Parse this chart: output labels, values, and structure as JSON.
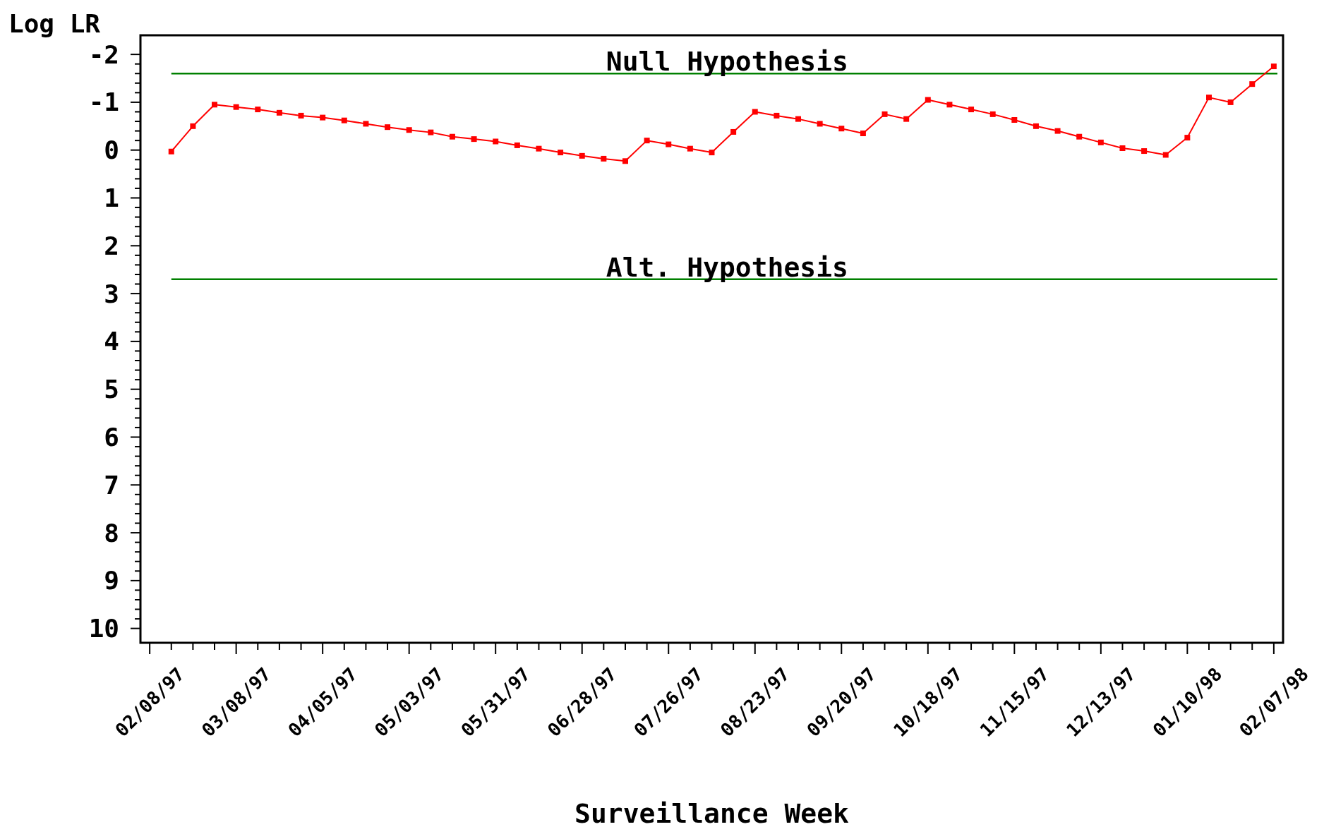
{
  "chart_data": {
    "type": "line",
    "ylabel": "Log LR",
    "xlabel": "Surveillance Week",
    "x": [
      "1997-02-15",
      "1997-02-22",
      "1997-03-01",
      "1997-03-08",
      "1997-03-15",
      "1997-03-22",
      "1997-03-29",
      "1997-04-05",
      "1997-04-12",
      "1997-04-19",
      "1997-04-26",
      "1997-05-03",
      "1997-05-10",
      "1997-05-17",
      "1997-05-24",
      "1997-05-31",
      "1997-06-07",
      "1997-06-14",
      "1997-06-21",
      "1997-06-28",
      "1997-07-05",
      "1997-07-12",
      "1997-07-19",
      "1997-07-26",
      "1997-08-02",
      "1997-08-09",
      "1997-08-16",
      "1997-08-23",
      "1997-08-30",
      "1997-09-06",
      "1997-09-13",
      "1997-09-20",
      "1997-09-27",
      "1997-10-04",
      "1997-10-11",
      "1997-10-18",
      "1997-10-25",
      "1997-11-01",
      "1997-11-08",
      "1997-11-15",
      "1997-11-22",
      "1997-11-29",
      "1997-12-06",
      "1997-12-13",
      "1997-12-20",
      "1997-12-27",
      "1998-01-03",
      "1998-01-10",
      "1998-01-17",
      "1998-01-24",
      "1998-01-31",
      "1998-02-07"
    ],
    "series": [
      {
        "color": "#ff0000",
        "values": [
          0.03,
          -0.5,
          -0.95,
          -0.9,
          -0.85,
          -0.78,
          -0.72,
          -0.68,
          -0.62,
          -0.55,
          -0.48,
          -0.42,
          -0.37,
          -0.28,
          -0.23,
          -0.18,
          -0.1,
          -0.03,
          0.05,
          0.12,
          0.18,
          0.23,
          -0.2,
          -0.12,
          -0.03,
          0.05,
          -0.38,
          -0.8,
          -0.72,
          -0.65,
          -0.55,
          -0.45,
          -0.35,
          -0.75,
          -0.65,
          -1.05,
          -0.95,
          -0.85,
          -0.75,
          -0.63,
          -0.5,
          -0.4,
          -0.28,
          -0.16,
          -0.04,
          0.02,
          0.1,
          -0.26,
          -1.1,
          -1.0,
          -1.38,
          -1.75
        ]
      }
    ],
    "marker": "square",
    "line_style": "solid",
    "grid": false,
    "ylim": [
      10.3,
      -2.4
    ],
    "yticks": [
      {
        "value": -2,
        "label": "-2"
      },
      {
        "value": -1.8,
        "label": null
      },
      {
        "value": -1.6,
        "label": null
      },
      {
        "value": -1.4,
        "label": null
      },
      {
        "value": -1.2,
        "label": null
      },
      {
        "value": -1,
        "label": "-1"
      },
      {
        "value": -0.8,
        "label": null
      },
      {
        "value": -0.6,
        "label": null
      },
      {
        "value": -0.4,
        "label": null
      },
      {
        "value": -0.2,
        "label": null
      },
      0,
      {
        "value": 0.2,
        "label": null
      },
      {
        "value": 0.4,
        "label": null
      },
      {
        "value": 0.6,
        "label": null
      },
      {
        "value": 0.8,
        "label": null
      },
      1,
      {
        "value": 1.2,
        "label": null
      },
      {
        "value": 1.4,
        "label": null
      },
      {
        "value": 1.6,
        "label": null
      },
      {
        "value": 1.8,
        "label": null
      },
      2,
      {
        "value": 2.2,
        "label": null
      },
      {
        "value": 2.4,
        "label": null
      },
      {
        "value": 2.6,
        "label": null
      },
      {
        "value": 2.8,
        "label": null
      },
      3,
      {
        "value": 3.2,
        "label": null
      },
      {
        "value": 3.4,
        "label": null
      },
      {
        "value": 3.6,
        "label": null
      },
      {
        "value": 3.8,
        "label": null
      },
      4,
      {
        "value": 4.2,
        "label": null
      },
      {
        "value": 4.4,
        "label": null
      },
      {
        "value": 4.6,
        "label": null
      },
      {
        "value": 4.8,
        "label": null
      },
      5,
      {
        "value": 5.2,
        "label": null
      },
      {
        "value": 5.4,
        "label": null
      },
      {
        "value": 5.6,
        "label": null
      },
      {
        "value": 5.8,
        "label": null
      },
      6,
      {
        "value": 6.2,
        "label": null
      },
      {
        "value": 6.4,
        "label": null
      },
      {
        "value": 6.6,
        "label": null
      },
      {
        "value": 6.8,
        "label": null
      },
      7,
      {
        "value": 7.2,
        "label": null
      },
      {
        "value": 7.4,
        "label": null
      },
      {
        "value": 7.6,
        "label": null
      },
      {
        "value": 7.8,
        "label": null
      },
      8,
      {
        "value": 8.2,
        "label": null
      },
      {
        "value": 8.4,
        "label": null
      },
      {
        "value": 8.6,
        "label": null
      },
      {
        "value": 8.8,
        "label": null
      },
      9,
      {
        "value": 9.2,
        "label": null
      },
      {
        "value": 9.4,
        "label": null
      },
      {
        "value": 9.6,
        "label": null
      },
      {
        "value": 9.8,
        "label": null
      },
      10
    ],
    "xlim": [
      "1997-02-05",
      "1998-02-10"
    ],
    "xticks": [
      {
        "value": "1997-02-08",
        "label": "02/08/97"
      },
      {
        "value": "1997-02-15",
        "label": null
      },
      {
        "value": "1997-02-22",
        "label": null
      },
      {
        "value": "1997-03-01",
        "label": null
      },
      {
        "value": "1997-03-08",
        "label": "03/08/97"
      },
      {
        "value": "1997-03-15",
        "label": null
      },
      {
        "value": "1997-03-22",
        "label": null
      },
      {
        "value": "1997-03-29",
        "label": null
      },
      {
        "value": "1997-04-05",
        "label": "04/05/97"
      },
      {
        "value": "1997-04-12",
        "label": null
      },
      {
        "value": "1997-04-19",
        "label": null
      },
      {
        "value": "1997-04-26",
        "label": null
      },
      {
        "value": "1997-05-03",
        "label": "05/03/97"
      },
      {
        "value": "1997-05-10",
        "label": null
      },
      {
        "value": "1997-05-17",
        "label": null
      },
      {
        "value": "1997-05-24",
        "label": null
      },
      {
        "value": "1997-05-31",
        "label": "05/31/97"
      },
      {
        "value": "1997-06-07",
        "label": null
      },
      {
        "value": "1997-06-14",
        "label": null
      },
      {
        "value": "1997-06-21",
        "label": null
      },
      {
        "value": "1997-06-28",
        "label": "06/28/97"
      },
      {
        "value": "1997-07-05",
        "label": null
      },
      {
        "value": "1997-07-12",
        "label": null
      },
      {
        "value": "1997-07-19",
        "label": null
      },
      {
        "value": "1997-07-26",
        "label": "07/26/97"
      },
      {
        "value": "1997-08-02",
        "label": null
      },
      {
        "value": "1997-08-09",
        "label": null
      },
      {
        "value": "1997-08-16",
        "label": null
      },
      {
        "value": "1997-08-23",
        "label": "08/23/97"
      },
      {
        "value": "1997-08-30",
        "label": null
      },
      {
        "value": "1997-09-06",
        "label": null
      },
      {
        "value": "1997-09-13",
        "label": null
      },
      {
        "value": "1997-09-20",
        "label": "09/20/97"
      },
      {
        "value": "1997-09-27",
        "label": null
      },
      {
        "value": "1997-10-04",
        "label": null
      },
      {
        "value": "1997-10-11",
        "label": null
      },
      {
        "value": "1997-10-18",
        "label": "10/18/97"
      },
      {
        "value": "1997-10-25",
        "label": null
      },
      {
        "value": "1997-11-01",
        "label": null
      },
      {
        "value": "1997-11-08",
        "label": null
      },
      {
        "value": "1997-11-15",
        "label": "11/15/97"
      },
      {
        "value": "1997-11-22",
        "label": null
      },
      {
        "value": "1997-11-29",
        "label": null
      },
      {
        "value": "1997-12-06",
        "label": null
      },
      {
        "value": "1997-12-13",
        "label": "12/13/97"
      },
      {
        "value": "1997-12-20",
        "label": null
      },
      {
        "value": "1997-12-27",
        "label": null
      },
      {
        "value": "1998-01-03",
        "label": null
      },
      {
        "value": "1998-01-10",
        "label": "01/10/98"
      },
      {
        "value": "1998-01-17",
        "label": null
      },
      {
        "value": "1998-01-24",
        "label": null
      },
      {
        "value": "1998-01-31",
        "label": null
      },
      {
        "value": "1998-02-07",
        "label": "02/07/98"
      }
    ],
    "ref_lines": [
      {
        "axis": "y",
        "value": -1.6,
        "label": "Null Hypothesis",
        "color": "#008000"
      },
      {
        "axis": "y",
        "value": 2.7,
        "label": "Alt. Hypothesis",
        "color": "#008000"
      }
    ]
  }
}
